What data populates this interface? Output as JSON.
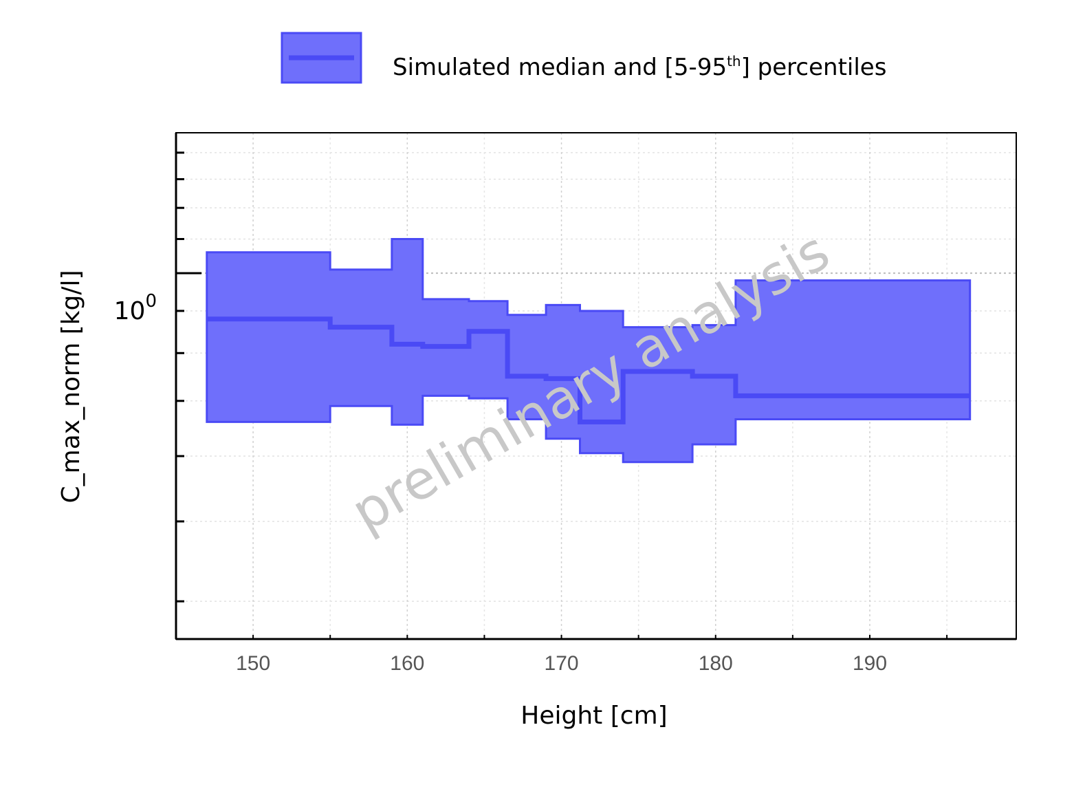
{
  "chart_data": {
    "type": "area",
    "x_edges": [
      147,
      155,
      159,
      161,
      164,
      166.5,
      169,
      171.2,
      174,
      178.5,
      181.3,
      196.5
    ],
    "series": [
      {
        "name": "Simulated median and [5-95th] percentiles",
        "median": [
          0.88,
          0.86,
          0.82,
          0.815,
          0.85,
          0.75,
          0.745,
          0.66,
          0.76,
          0.75,
          0.71
        ],
        "p5": [
          0.66,
          0.69,
          0.655,
          0.71,
          0.705,
          0.665,
          0.63,
          0.605,
          0.59,
          0.62,
          0.665
        ],
        "p95": [
          1.06,
          1.01,
          1.1,
          0.93,
          0.925,
          0.89,
          0.915,
          0.9,
          0.86,
          0.865,
          0.98
        ]
      }
    ],
    "colors": {
      "fill": "#6f6ffb",
      "line": "#4a4af5"
    },
    "xlabel": "Height [cm]",
    "ylabel": "C_max_norm [kg/l]",
    "x_ticks": [
      150,
      160,
      170,
      180,
      190
    ],
    "y_tick_label": {
      "base": "10",
      "exponent": "0"
    },
    "xlim": [
      145,
      199.5
    ],
    "ylim": [
      0.36,
      1.48
    ],
    "yscale": "log",
    "grid": true,
    "legend": {
      "placement": "top-center",
      "text_before": "Simulated median and [5-95",
      "superscript": "th",
      "text_after": "] percentiles"
    },
    "watermark": "preliminary analysis"
  }
}
